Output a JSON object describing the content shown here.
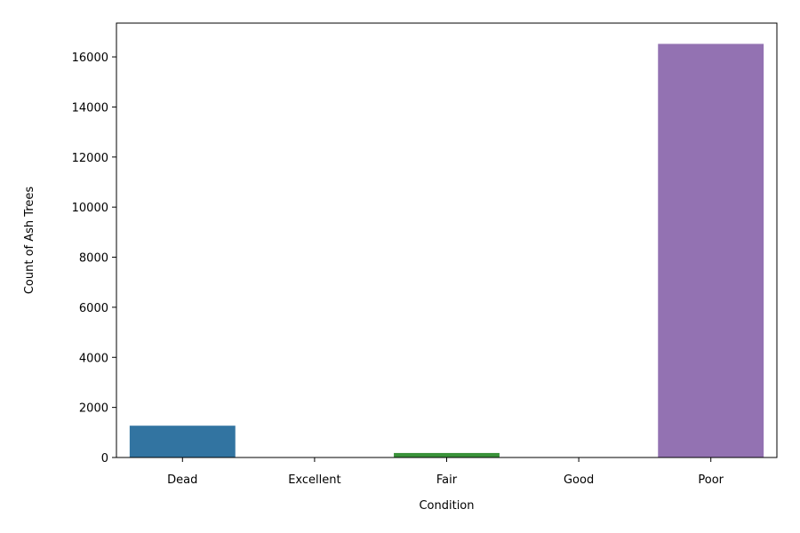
{
  "chart_data": {
    "type": "bar",
    "title": "",
    "xlabel": "Condition",
    "ylabel": "Count of Ash Trees",
    "categories": [
      "Dead",
      "Excellent",
      "Fair",
      "Good",
      "Poor"
    ],
    "values": [
      1270,
      10,
      180,
      15,
      16520
    ],
    "colors": [
      "#3274a1",
      "#e1812c",
      "#3a923a",
      "#c03d3e",
      "#9372b2"
    ],
    "ylim": [
      0,
      17350
    ],
    "yticks": [
      0,
      2000,
      4000,
      6000,
      8000,
      10000,
      12000,
      14000,
      16000
    ],
    "grid": false,
    "legend": "none"
  }
}
